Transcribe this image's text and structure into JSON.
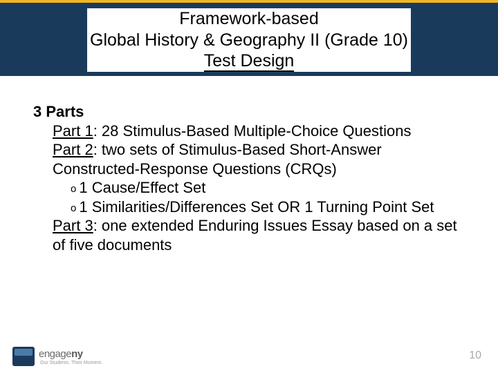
{
  "colors": {
    "accent_yellow": "#f2b61e",
    "band_navy": "#1a3a5c",
    "text_black": "#000000",
    "page_num_gray": "#a8a8a8",
    "logo_gray": "#6b6b6b",
    "background": "#ffffff"
  },
  "title": {
    "line1": "Framework-based",
    "line2": "Global History & Geography II (Grade 10)",
    "line3": "Test Design",
    "fontsize": 25
  },
  "body": {
    "fontsize": 22,
    "heading": "3 Parts",
    "parts": [
      {
        "label": "Part 1",
        "text": ": 28 Stimulus-Based Multiple-Choice Questions"
      },
      {
        "label": "Part 2",
        "text": ": two sets of Stimulus-Based Short-Answer Constructed-Response Questions (CRQs)",
        "subitems": [
          "1 Cause/Effect Set",
          "1 Similarities/Differences Set OR 1 Turning Point Set"
        ]
      },
      {
        "label": "Part 3",
        "text": ": one extended Enduring Issues Essay based on a set of five documents"
      }
    ]
  },
  "footer": {
    "logo_text_light": "engage",
    "logo_text_bold": "ny",
    "tagline": "Our Students. Their Moment.",
    "page_number": "10"
  }
}
